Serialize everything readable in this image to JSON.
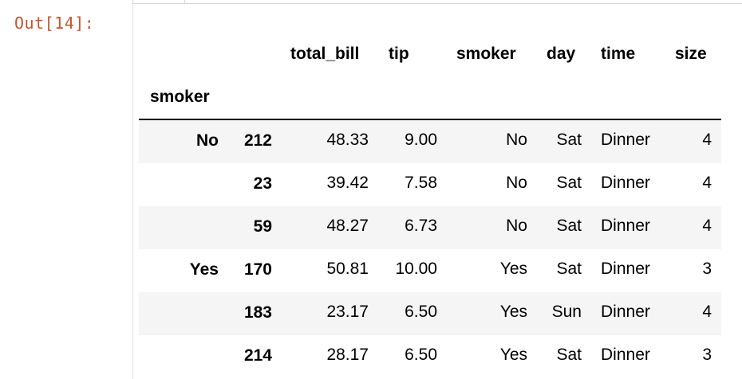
{
  "prompt": "Out[14]:",
  "table": {
    "columns": [
      "total_bill",
      "tip",
      "smoker",
      "day",
      "time",
      "size"
    ],
    "index_name": "smoker",
    "groups": [
      {
        "label": "No",
        "rows": [
          {
            "idx": "212",
            "total_bill": "48.33",
            "tip": "9.00",
            "smoker": "No",
            "day": "Sat",
            "time": "Dinner",
            "size": "4"
          },
          {
            "idx": "23",
            "total_bill": "39.42",
            "tip": "7.58",
            "smoker": "No",
            "day": "Sat",
            "time": "Dinner",
            "size": "4"
          },
          {
            "idx": "59",
            "total_bill": "48.27",
            "tip": "6.73",
            "smoker": "No",
            "day": "Sat",
            "time": "Dinner",
            "size": "4"
          }
        ]
      },
      {
        "label": "Yes",
        "rows": [
          {
            "idx": "170",
            "total_bill": "50.81",
            "tip": "10.00",
            "smoker": "Yes",
            "day": "Sat",
            "time": "Dinner",
            "size": "3"
          },
          {
            "idx": "183",
            "total_bill": "23.17",
            "tip": "6.50",
            "smoker": "Yes",
            "day": "Sun",
            "time": "Dinner",
            "size": "4"
          },
          {
            "idx": "214",
            "total_bill": "28.17",
            "tip": "6.50",
            "smoker": "Yes",
            "day": "Sat",
            "time": "Dinner",
            "size": "3"
          }
        ]
      }
    ]
  }
}
